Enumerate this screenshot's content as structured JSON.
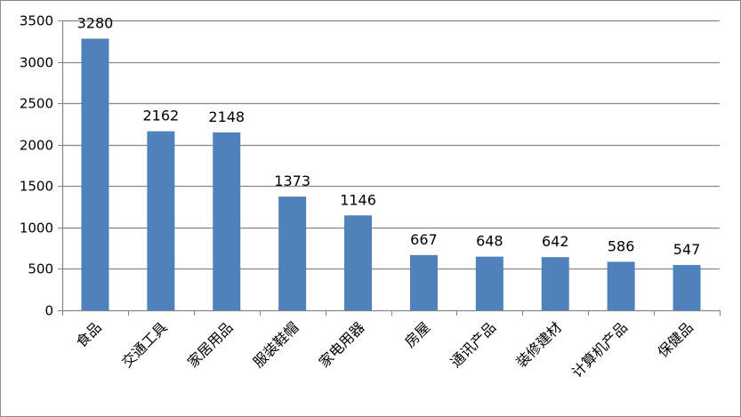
{
  "chart_data": {
    "type": "bar",
    "title": "",
    "xlabel": "",
    "ylabel": "",
    "categories": [
      "食品",
      "交通工具",
      "家居用品",
      "服装鞋帽",
      "家电用器",
      "房屋",
      "通讯产品",
      "装修建材",
      "计算机产品",
      "保健品"
    ],
    "values": [
      3280,
      2162,
      2148,
      1373,
      1146,
      667,
      648,
      642,
      586,
      547
    ],
    "data_labels": [
      "3280",
      "2162",
      "2148",
      "1373",
      "1146",
      "667",
      "648",
      "642",
      "586",
      "547"
    ],
    "ylim": [
      0,
      3500
    ],
    "yticks": [
      0,
      500,
      1000,
      1500,
      2000,
      2500,
      3000,
      3500
    ],
    "ytick_labels": [
      "0",
      "500",
      "1000",
      "1500",
      "2000",
      "2500",
      "3000",
      "3500"
    ],
    "grid": true,
    "legend": "none",
    "bar_color": "#4f81bd",
    "grid_color": "#868686",
    "axis_color": "#868686"
  }
}
